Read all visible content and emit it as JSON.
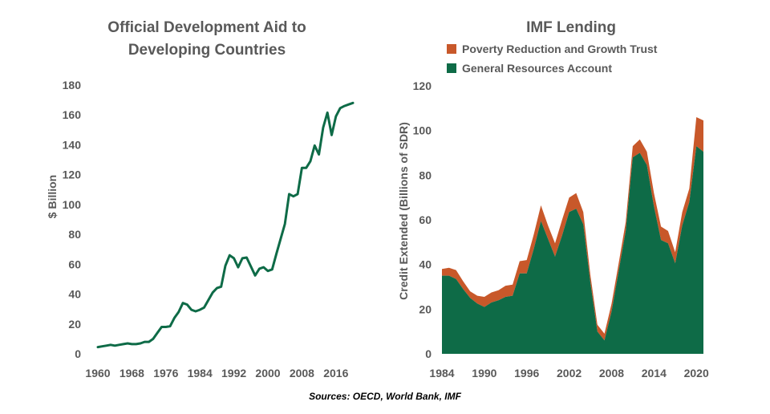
{
  "source": "Sources: OECD, World Bank, IMF",
  "colors": {
    "oda_line": "#0e6b47",
    "gra_fill": "#0e6b47",
    "prgt_fill": "#c8582a",
    "text": "#595959"
  },
  "chart_data": [
    {
      "type": "line",
      "title_lines": [
        "Official Development Aid to",
        "Developing Countries"
      ],
      "xlabel": "",
      "ylabel": "$ Billion",
      "xlim": [
        1960,
        2020
      ],
      "ylim": [
        0,
        180
      ],
      "x_ticks": [
        1960,
        1968,
        1976,
        1984,
        1992,
        2000,
        2008,
        2016
      ],
      "y_ticks": [
        0,
        20,
        40,
        60,
        80,
        100,
        120,
        140,
        160,
        180
      ],
      "grid": false,
      "legend": "none",
      "series": [
        {
          "x": [
            1960,
            1961,
            1962,
            1963,
            1964,
            1965,
            1966,
            1967,
            1968,
            1969,
            1970,
            1971,
            1972,
            1973,
            1974,
            1975,
            1976,
            1977,
            1978,
            1979,
            1980,
            1981,
            1982,
            1983,
            1984,
            1985,
            1986,
            1987,
            1988,
            1989,
            1990,
            1991,
            1992,
            1993,
            1994,
            1995,
            1996,
            1997,
            1998,
            1999,
            2000,
            2001,
            2002,
            2003,
            2004,
            2005,
            2006,
            2007,
            2008,
            2009,
            2010,
            2011,
            2012,
            2013,
            2014,
            2015,
            2016,
            2017,
            2018,
            2019,
            2020
          ],
          "values": [
            4.5,
            5,
            5.5,
            6,
            5.5,
            6,
            6.5,
            7,
            6.5,
            6.5,
            7,
            8,
            8,
            10,
            14,
            18,
            18,
            18.5,
            24,
            28,
            34,
            33,
            29.5,
            28.5,
            29.5,
            31,
            36,
            41,
            44,
            45,
            59,
            66,
            64,
            58,
            64,
            64.5,
            58.5,
            52.5,
            57,
            58,
            55.5,
            56.5,
            67,
            77,
            87,
            107,
            105.5,
            107,
            124.5,
            124.5,
            129,
            139.5,
            133.5,
            151.5,
            161.5,
            146.5,
            159,
            164.5,
            166,
            167,
            168
          ]
        }
      ]
    },
    {
      "type": "area",
      "stacked": true,
      "title": "IMF Lending",
      "xlabel": "",
      "ylabel": "Credit Extended (Billions of SDR)",
      "xlim": [
        1984,
        2021
      ],
      "ylim": [
        0,
        120
      ],
      "x_ticks": [
        1984,
        1990,
        1996,
        2002,
        2008,
        2014,
        2020
      ],
      "y_ticks": [
        0,
        20,
        40,
        60,
        80,
        100,
        120
      ],
      "grid": false,
      "legend": "top",
      "x": [
        1984,
        1985,
        1986,
        1987,
        1988,
        1989,
        1990,
        1991,
        1992,
        1993,
        1994,
        1995,
        1996,
        1997,
        1998,
        1999,
        2000,
        2001,
        2002,
        2003,
        2004,
        2005,
        2006,
        2007,
        2008,
        2009,
        2010,
        2011,
        2012,
        2013,
        2014,
        2015,
        2016,
        2017,
        2018,
        2019,
        2020,
        2021
      ],
      "series": [
        {
          "name": "Poverty Reduction and Growth Trust",
          "values": [
            3,
            3.5,
            4,
            3.5,
            3,
            3.5,
            4.5,
            4.5,
            4.5,
            5,
            5,
            5.5,
            6,
            6.5,
            7,
            6,
            6,
            7,
            6.5,
            7,
            5.5,
            3.5,
            3,
            3,
            3.5,
            3.5,
            4,
            5,
            6,
            6,
            6,
            6,
            5.5,
            5,
            6,
            6,
            13,
            14
          ]
        },
        {
          "name": "General Resources Account",
          "values": [
            35,
            35,
            33.5,
            29,
            25,
            22.5,
            21,
            23,
            24,
            25.5,
            26,
            36,
            36,
            47,
            59.5,
            51.5,
            43.5,
            53,
            63.5,
            65,
            58,
            32,
            10,
            6,
            19,
            37,
            55,
            88,
            90,
            84.5,
            66,
            51,
            49.5,
            40.5,
            57.5,
            68,
            93,
            90.5
          ]
        }
      ]
    }
  ]
}
